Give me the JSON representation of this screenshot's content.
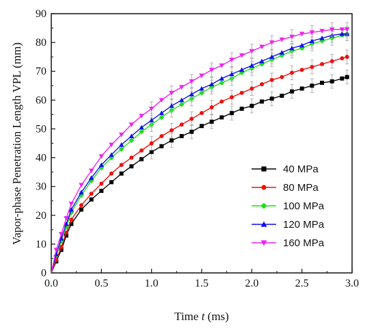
{
  "chart_data": {
    "type": "line",
    "title": "",
    "xlabel": "Time t (ms)",
    "xlabel_main": "Time ",
    "xlabel_var": "t",
    "xlabel_unit": " (ms)",
    "ylabel": "Vapor-phase Penetration Length VPL (mm)",
    "xlim": [
      0,
      3.0
    ],
    "ylim": [
      0,
      90
    ],
    "xticks": [
      "0.0",
      "0.5",
      "1.0",
      "1.5",
      "2.0",
      "2.5",
      "3.0"
    ],
    "yticks": [
      "0",
      "10",
      "20",
      "30",
      "40",
      "50",
      "60",
      "70",
      "80",
      "90"
    ],
    "grid": false,
    "legend_position": "bottom-right",
    "x": [
      0.0,
      0.05,
      0.1,
      0.15,
      0.2,
      0.3,
      0.4,
      0.5,
      0.6,
      0.7,
      0.8,
      0.9,
      1.0,
      1.1,
      1.2,
      1.3,
      1.4,
      1.5,
      1.6,
      1.7,
      1.8,
      1.9,
      2.0,
      2.1,
      2.2,
      2.3,
      2.4,
      2.5,
      2.6,
      2.7,
      2.8,
      2.9,
      2.95
    ],
    "series": [
      {
        "name": "40 MPa",
        "color": "#000000",
        "marker": "square",
        "values": [
          0,
          4,
          8,
          13,
          17,
          22,
          25.5,
          28.5,
          31.5,
          34.5,
          37,
          39.5,
          42,
          44,
          46,
          47.5,
          49,
          51,
          52.5,
          54,
          55.5,
          57,
          58,
          59.5,
          60.5,
          61.5,
          63,
          64,
          65,
          66,
          66.5,
          67.5,
          68
        ]
      },
      {
        "name": "80 MPa",
        "color": "#ee1111",
        "marker": "circle",
        "values": [
          0,
          4.5,
          9,
          14,
          18.5,
          23.5,
          27.5,
          31,
          34.5,
          37.5,
          40,
          42.5,
          45,
          47.5,
          49.5,
          51.5,
          53.5,
          55.5,
          57.5,
          59.5,
          61,
          62.5,
          64,
          65.5,
          67,
          68,
          69.5,
          70.5,
          71.5,
          72.5,
          73.5,
          74.5,
          75
        ]
      },
      {
        "name": "100 MPa",
        "color": "#22dd22",
        "marker": "diamond",
        "values": [
          0,
          6,
          11,
          16,
          21,
          27,
          32,
          36.5,
          40,
          43,
          46,
          49,
          51.5,
          54,
          56.5,
          58.5,
          60.5,
          62.5,
          64.5,
          66,
          67.5,
          69.5,
          71,
          72.5,
          74,
          75.5,
          77,
          78,
          79.5,
          80.5,
          81.5,
          82.5,
          83
        ]
      },
      {
        "name": "120 MPa",
        "color": "#1111ee",
        "marker": "triangle-up",
        "values": [
          0,
          6.5,
          12,
          17,
          22,
          28,
          33,
          37.5,
          41,
          44.5,
          47.5,
          50.5,
          53,
          55.5,
          58,
          60,
          62,
          64,
          65.5,
          67.5,
          69,
          70.5,
          72,
          73.5,
          75,
          76.5,
          78,
          79,
          80.5,
          81.5,
          82.5,
          83,
          83
        ]
      },
      {
        "name": "160 MPa",
        "color": "#ee22ee",
        "marker": "triangle-down",
        "values": [
          0,
          8,
          13.5,
          19,
          24,
          30.5,
          35.5,
          40.5,
          44.5,
          48,
          51.5,
          54.5,
          57,
          60,
          62.5,
          64.5,
          66.5,
          68.5,
          70.5,
          72,
          74,
          75.5,
          77,
          78.5,
          80,
          81,
          82,
          83,
          83.5,
          84,
          84.5,
          84.5,
          84.5
        ]
      }
    ]
  }
}
